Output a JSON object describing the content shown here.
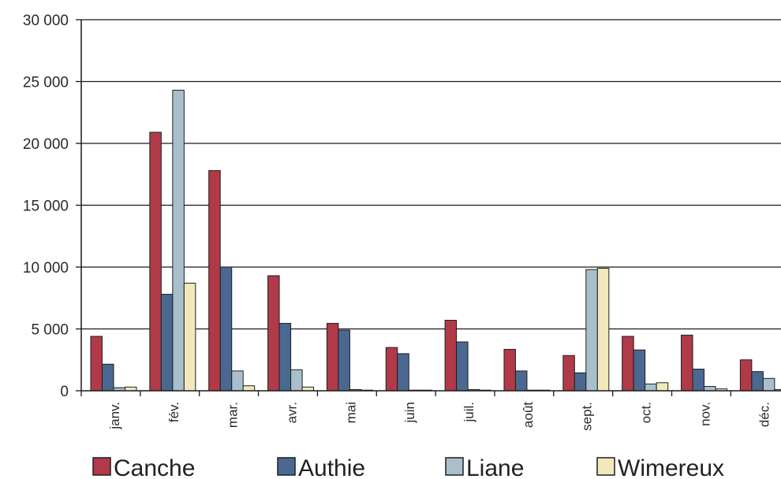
{
  "chart_data": {
    "type": "bar",
    "categories": [
      "janv.",
      "fév.",
      "mar.",
      "avr.",
      "mai",
      "juin",
      "juil.",
      "août",
      "sept.",
      "oct.",
      "nov.",
      "déc."
    ],
    "series": [
      {
        "name": "Canche",
        "color": "#b03a48",
        "values": [
          4400,
          20900,
          17800,
          9300,
          5450,
          3500,
          5700,
          3350,
          2850,
          4400,
          4500,
          2500
        ]
      },
      {
        "name": "Authie",
        "color": "#4a6890",
        "values": [
          2150,
          7800,
          10000,
          5450,
          4900,
          3000,
          3950,
          1600,
          1450,
          3300,
          1750,
          1550
        ]
      },
      {
        "name": "Liane",
        "color": "#a9bfcc",
        "values": [
          250,
          24300,
          1600,
          1700,
          100,
          50,
          100,
          50,
          9800,
          550,
          350,
          1000
        ]
      },
      {
        "name": "Wimereux",
        "color": "#f1e9bc",
        "values": [
          300,
          8700,
          400,
          300,
          50,
          50,
          50,
          50,
          9900,
          650,
          150,
          100
        ]
      }
    ],
    "yticks": [
      "0",
      "5 000",
      "10 000",
      "15 000",
      "20 000",
      "25 000",
      "30 000"
    ],
    "ylim": [
      0,
      30000
    ],
    "grid": true,
    "legend_position": "bottom"
  }
}
